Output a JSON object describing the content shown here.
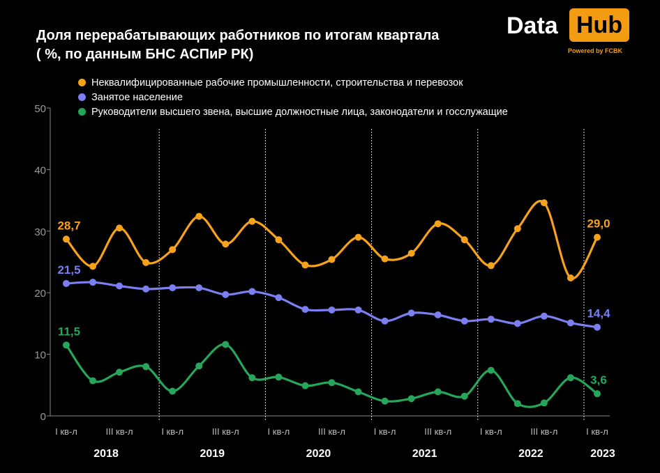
{
  "title_line1": "Доля перерабатывающих работников по итогам квартала",
  "title_line2": "( %, по данным БНС АСПиР РК)",
  "logo": {
    "data": "Data",
    "hub": "Hub",
    "powered": "Powered by FCBK",
    "hub_color": "#f39c12"
  },
  "chart_data": {
    "type": "line",
    "ylim": [
      0,
      50
    ],
    "yticks": [
      "0",
      "10",
      "20",
      "30",
      "40",
      "50"
    ],
    "x_tick_labels": [
      "I кв-л",
      "III кв-л",
      "I кв-л",
      "III кв-л",
      "I кв-л",
      "III кв-л",
      "I кв-л",
      "III кв-л",
      "I кв-л",
      "III кв-л",
      "I кв-л"
    ],
    "x_tick_quarter_index": [
      0,
      2,
      4,
      6,
      8,
      10,
      12,
      14,
      16,
      18,
      20
    ],
    "years": [
      "2018",
      "2019",
      "2020",
      "2021",
      "2022",
      "2023"
    ],
    "year_start_index": [
      0,
      4,
      8,
      12,
      16,
      20
    ],
    "series": [
      {
        "name": "Неквалифицированные рабочие промышленности, строительства и перевозок",
        "color": "#f7a21b",
        "values": [
          28.7,
          24.3,
          30.5,
          24.9,
          27.0,
          32.4,
          27.9,
          31.6,
          28.6,
          24.5,
          25.4,
          29.0,
          25.5,
          26.4,
          31.2,
          28.6,
          24.4,
          30.4,
          34.6,
          22.4,
          29.0
        ],
        "first_label": "28,7",
        "last_label": "29,0"
      },
      {
        "name": "Занятое население",
        "color": "#7b7ff2",
        "values": [
          21.5,
          21.7,
          21.1,
          20.6,
          20.8,
          20.8,
          19.7,
          20.2,
          19.2,
          17.3,
          17.2,
          17.2,
          15.4,
          16.7,
          16.4,
          15.4,
          15.7,
          15.0,
          16.2,
          15.1,
          14.4
        ],
        "first_label": "21,5",
        "last_label": "14,4"
      },
      {
        "name": "Руководители высшего звена, высшие должностные лица, законодатели и госслужащие",
        "color": "#26a65b",
        "values": [
          11.5,
          5.7,
          7.1,
          8.0,
          4.0,
          8.1,
          11.6,
          6.2,
          6.3,
          4.9,
          5.4,
          3.9,
          2.4,
          2.8,
          3.9,
          3.2,
          7.4,
          2.0,
          2.1,
          6.2,
          3.6
        ],
        "first_label": "11,5",
        "last_label": "3,6"
      }
    ],
    "grid": false,
    "legend_position": "top-left"
  }
}
